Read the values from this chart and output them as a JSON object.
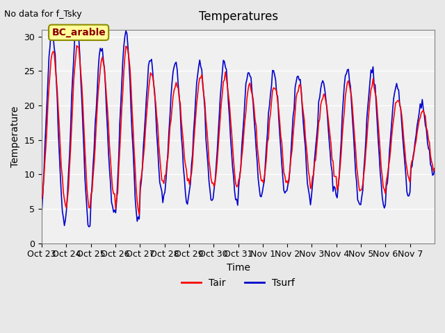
{
  "title": "Temperatures",
  "xlabel": "Time",
  "ylabel": "Temperature",
  "note": "No data for f_Tsky",
  "bc_label": "BC_arable",
  "ylim": [
    0,
    31
  ],
  "yticks": [
    0,
    5,
    10,
    15,
    20,
    25,
    30
  ],
  "xtick_labels": [
    "Oct 23",
    "Oct 24",
    "Oct 25",
    "Oct 26",
    "Oct 27",
    "Oct 28",
    "Oct 29",
    "Oct 30",
    "Oct 31",
    "Nov 1",
    "Nov 2",
    "Nov 3",
    "Nov 4",
    "Nov 5",
    "Nov 6",
    "Nov 7"
  ],
  "tair_color": "#ff0000",
  "tsurf_color": "#0000cc",
  "bg_color": "#e8e8e8",
  "plot_bg_color": "#f0f0f0",
  "legend_entries": [
    "Tair",
    "Tsurf"
  ],
  "n_days": 16
}
